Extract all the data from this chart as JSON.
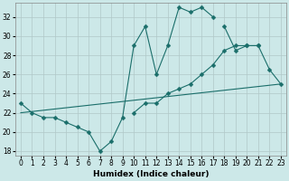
{
  "xlabel": "Humidex (Indice chaleur)",
  "ylabel": "",
  "bg_color": "#cce8e8",
  "grid_color": "#b0c8c8",
  "line_color": "#1a6e6a",
  "xlim": [
    -0.5,
    23.5
  ],
  "ylim": [
    17.5,
    33.5
  ],
  "xticks": [
    0,
    1,
    2,
    3,
    4,
    5,
    6,
    7,
    8,
    9,
    10,
    11,
    12,
    13,
    14,
    15,
    16,
    17,
    18,
    19,
    20,
    21,
    22,
    23
  ],
  "yticks": [
    18,
    20,
    22,
    24,
    26,
    28,
    30,
    32
  ],
  "lines": [
    {
      "x": [
        0,
        1,
        2,
        3,
        4,
        5,
        6,
        7,
        8,
        9,
        10,
        11,
        12,
        13,
        14,
        15,
        16,
        17
      ],
      "y": [
        23,
        22,
        21.5,
        21.5,
        21,
        20.5,
        20,
        18,
        19,
        21.5,
        29,
        31,
        26,
        29,
        33,
        32.5,
        33,
        32
      ],
      "marker": "D",
      "marker_size": 2.5
    },
    {
      "x": [
        10,
        11,
        12,
        13,
        14,
        15,
        16,
        17,
        18,
        19,
        20,
        21,
        22,
        23
      ],
      "y": [
        22,
        23,
        23,
        24,
        24.5,
        25,
        26,
        27,
        28.5,
        29,
        29,
        29,
        26.5,
        25
      ],
      "marker": "D",
      "marker_size": 2.5
    },
    {
      "x": [
        0,
        23
      ],
      "y": [
        22,
        25
      ],
      "marker": null,
      "marker_size": 0
    },
    {
      "x": [
        18,
        19,
        20,
        21
      ],
      "y": [
        31,
        28.5,
        29,
        29
      ],
      "marker": "D",
      "marker_size": 2.5
    }
  ]
}
